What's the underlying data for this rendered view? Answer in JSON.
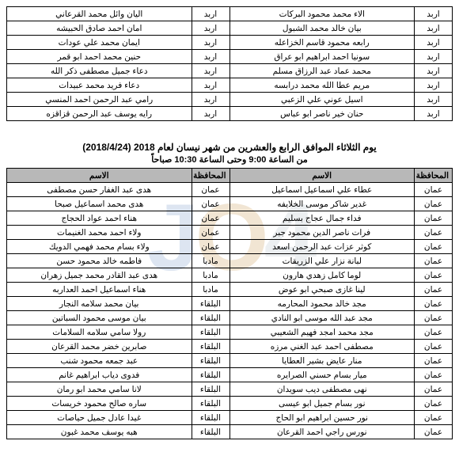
{
  "watermark": {
    "j": "J",
    "o1": "O",
    "four": "4",
    "o2": ""
  },
  "topTable": {
    "gov_label": "اربد",
    "rows": [
      {
        "g1": "اربد",
        "n1": "الاء محمد محمود البركات",
        "g2": "اربد",
        "n2": "اليان وائل محمد القرعاني"
      },
      {
        "g1": "اربد",
        "n1": "بيان خالد محمد الشبول",
        "g2": "اربد",
        "n2": "امان احمد صادق الحبيشه"
      },
      {
        "g1": "اربد",
        "n1": "رابعه محمود قاسم الخزاعله",
        "g2": "اربد",
        "n2": "ايمان محمد علي عودات"
      },
      {
        "g1": "اربد",
        "n1": "سونيا احمد ابراهيم ابو عراق",
        "g2": "اربد",
        "n2": "حنين محمد احمد ابو قمر"
      },
      {
        "g1": "اربد",
        "n1": "محمد عماد عبد الرزاق مسلم",
        "g2": "اربد",
        "n2": "دعاء جميل مصطفى ذكر الله"
      },
      {
        "g1": "اربد",
        "n1": "مريم عطا الله محمد درابسه",
        "g2": "اربد",
        "n2": "دعاء فريد محمد عبيدات"
      },
      {
        "g1": "اربد",
        "n1": "اسيل عوني علي الزعبي",
        "g2": "اربد",
        "n2": "رامي عبد الرحمن احمد المنسي"
      },
      {
        "g1": "اربد",
        "n1": "حنان خير ناصر ابو عباس",
        "g2": "اربد",
        "n2": "رايه يوسف عبد الرحمن قزاقزه"
      }
    ]
  },
  "header": {
    "title": "يوم الثلاثاء الموافق الرابع والعشرين من شهر نيسان لعام 2018 (2018/4/24)",
    "subtitle": "من الساعة 9:00 وحتى الساعة 10:30 صباحاً"
  },
  "mainTable": {
    "columns": {
      "gov": "المحافظة",
      "name": "الاسم"
    },
    "rows": [
      {
        "g1": "عمان",
        "n1": "عطاء علي اسماعيل اسماعيل",
        "g2": "عمان",
        "n2": "هدى عبد الغفار حسن مصطفى"
      },
      {
        "g1": "عمان",
        "n1": "غدير شاكر موسى الخلايفه",
        "g2": "عمان",
        "n2": "هدى محمد اسماعيل صبحا"
      },
      {
        "g1": "عمان",
        "n1": "فداء جمال عجاج بسليم",
        "g2": "عمان",
        "n2": "هناء احمد عواد الحجاج"
      },
      {
        "g1": "عمان",
        "n1": "فرات ناصر الدين محمود جبر",
        "g2": "عمان",
        "n2": "ولاء احمد محمد الغنيمات"
      },
      {
        "g1": "عمان",
        "n1": "كوثر عزات عبد الرحمن اسعد",
        "g2": "عمان",
        "n2": "ولاء بسام محمد فهمي الدويك"
      },
      {
        "g1": "عمان",
        "n1": "لبانة نزار علي الزريقات",
        "g2": "مادبا",
        "n2": "فاطمه خالد محمود حسن"
      },
      {
        "g1": "عمان",
        "n1": "لوما كامل زهدي هارون",
        "g2": "مادبا",
        "n2": "هدى عبد القادر محمد جميل زهران"
      },
      {
        "g1": "عمان",
        "n1": "لينا غازى صبحي ابو عوض",
        "g2": "مادبا",
        "n2": "هناء اسماعيل احمد العداربه"
      },
      {
        "g1": "عمان",
        "n1": "مجد خالد محمود المحارمه",
        "g2": "البلقاء",
        "n2": "بيان محمد سلامه النجار"
      },
      {
        "g1": "عمان",
        "n1": "مجد عبد الله موسى ابو النادي",
        "g2": "البلقاء",
        "n2": "بيان موسى محمود السباتين"
      },
      {
        "g1": "عمان",
        "n1": "مجد محمد امجد فهيم الشعيبي",
        "g2": "البلقاء",
        "n2": "رولا سامي سلامه السلامات"
      },
      {
        "g1": "عمان",
        "n1": "مصطفى احمد عبد الغني مرزه",
        "g2": "البلقاء",
        "n2": "صابرين خضر محمد القرعان"
      },
      {
        "g1": "عمان",
        "n1": "منار عايض بشير العطايا",
        "g2": "البلقاء",
        "n2": "عبد جمعه محمود شنب"
      },
      {
        "g1": "عمان",
        "n1": "ميار بسام حسني الصرايره",
        "g2": "البلقاء",
        "n2": "فدوى دياب ابراهيم غانم"
      },
      {
        "g1": "عمان",
        "n1": "نهى مصطفى ديب سويدان",
        "g2": "البلقاء",
        "n2": "لانا سامي محمد ابو رمان"
      },
      {
        "g1": "عمان",
        "n1": "نور بسام جميل ابو عيسى",
        "g2": "البلقاء",
        "n2": "ساره صالح محمود خريسات"
      },
      {
        "g1": "عمان",
        "n1": "نور حسين ابراهيم ابو الحاج",
        "g2": "البلقاء",
        "n2": "غيدا عادل جميل حياصات"
      },
      {
        "g1": "عمان",
        "n1": "نورس راجي احمد القرعان",
        "g2": "البلقاء",
        "n2": "هبه يوسف محمد غبون"
      }
    ]
  }
}
